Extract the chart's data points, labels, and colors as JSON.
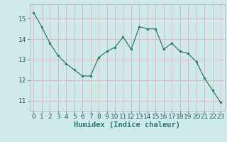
{
  "x": [
    0,
    1,
    2,
    3,
    4,
    5,
    6,
    7,
    8,
    9,
    10,
    11,
    12,
    13,
    14,
    15,
    16,
    17,
    18,
    19,
    20,
    21,
    22,
    23
  ],
  "y": [
    15.3,
    14.6,
    13.8,
    13.2,
    12.8,
    12.5,
    12.2,
    12.2,
    13.1,
    13.4,
    13.6,
    14.1,
    13.5,
    14.6,
    14.5,
    14.5,
    13.5,
    13.8,
    13.4,
    13.3,
    12.9,
    12.1,
    11.5,
    10.9
  ],
  "line_color": "#2d7a6e",
  "marker_color": "#2d7a6e",
  "bg_color": "#ceeaea",
  "grid_color": "#e8b0b0",
  "xlabel": "Humidex (Indice chaleur)",
  "xlabel_fontsize": 7.5,
  "tick_fontsize": 6.5,
  "ylim": [
    10.5,
    15.7
  ],
  "yticks": [
    11,
    12,
    13,
    14,
    15
  ],
  "xticks": [
    0,
    1,
    2,
    3,
    4,
    5,
    6,
    7,
    8,
    9,
    10,
    11,
    12,
    13,
    14,
    15,
    16,
    17,
    18,
    19,
    20,
    21,
    22,
    23
  ]
}
